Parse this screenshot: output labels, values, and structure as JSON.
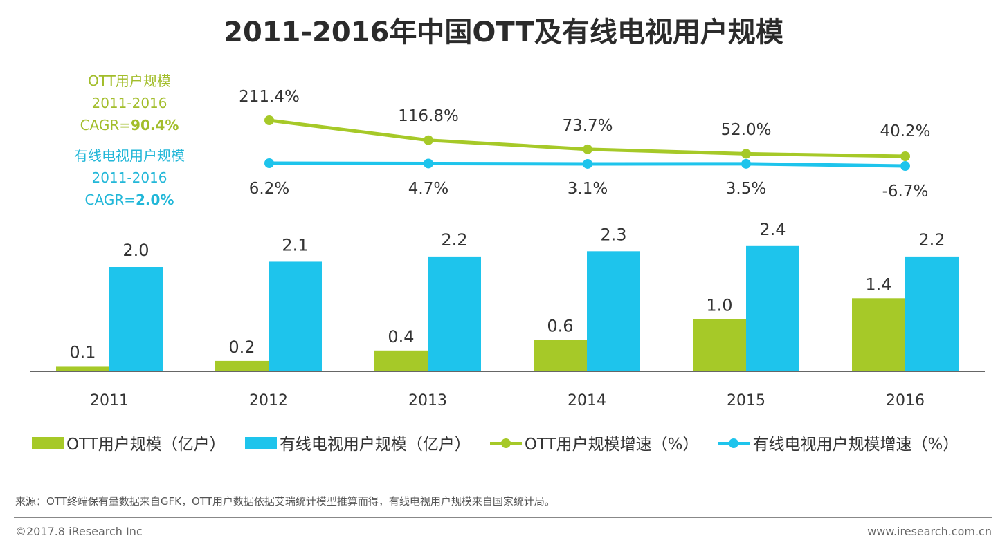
{
  "title": "2011-2016年中国OTT及有线电视用户规模",
  "cagr": {
    "ott": {
      "line1": "OTT用户规模",
      "line2": "2011-2016",
      "prefix": "CAGR=",
      "value": "90.4%"
    },
    "cable": {
      "line1": "有线电视用户规模",
      "line2": "2011-2016",
      "prefix": "CAGR=",
      "value": "2.0%"
    }
  },
  "colors": {
    "green": "#a6c928",
    "blue": "#1ec4ec",
    "greenText": "#a2bd2a",
    "blueText": "#22b7d8"
  },
  "legend": {
    "ott_bar": "OTT用户规模（亿户）",
    "cable_bar": "有线电视用户规模（亿户）",
    "ott_line": "OTT用户规模增速（%）",
    "cable_line": "有线电视用户规模增速（%）"
  },
  "chart_data": {
    "type": "bar+line",
    "categories": [
      "2011",
      "2012",
      "2013",
      "2014",
      "2015",
      "2016"
    ],
    "bar_series": [
      {
        "name": "OTT用户规模（亿户）",
        "values": [
          0.1,
          0.2,
          0.4,
          0.6,
          1.0,
          1.4
        ],
        "labels": [
          "0.1",
          "0.2",
          "0.4",
          "0.6",
          "1.0",
          "1.4"
        ]
      },
      {
        "name": "有线电视用户规模（亿户）",
        "values": [
          2.0,
          2.1,
          2.2,
          2.3,
          2.4,
          2.2
        ],
        "labels": [
          "2.0",
          "2.1",
          "2.2",
          "2.3",
          "2.4",
          "2.2"
        ]
      }
    ],
    "line_series": [
      {
        "name": "OTT用户规模增速（%）",
        "values": [
          211.4,
          116.8,
          73.7,
          52.0,
          40.2
        ],
        "labels": [
          "211.4%",
          "116.8%",
          "73.7%",
          "52.0%",
          "40.2%"
        ]
      },
      {
        "name": "有线电视用户规模增速（%）",
        "values": [
          6.2,
          4.7,
          3.1,
          3.5,
          -6.7
        ],
        "labels": [
          "6.2%",
          "4.7%",
          "3.1%",
          "3.5%",
          "-6.7%"
        ]
      }
    ]
  },
  "source": "来源：OTT终端保有量数据来自GFK，OTT用户数据依据艾瑞统计模型推算而得，有线电视用户规模来自国家统计局。",
  "copyright": "©2017.8 iResearch Inc",
  "website": "www.iresearch.com.cn"
}
